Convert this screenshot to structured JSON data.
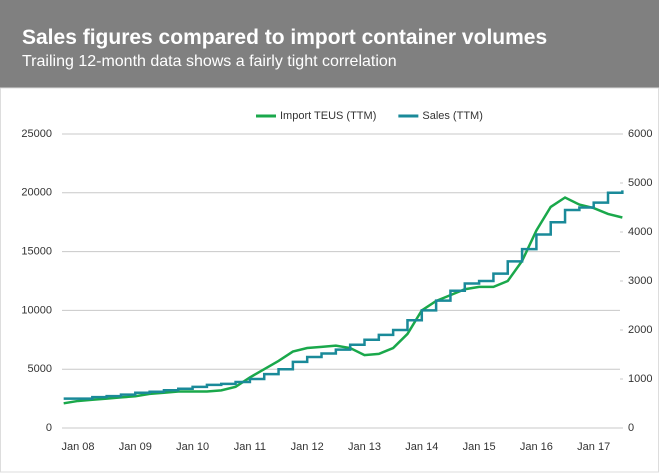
{
  "chart_data": {
    "type": "line",
    "title": "Sales figures compared to import container volumes",
    "subtitle": "Trailing 12-month data shows a fairly tight correlation",
    "categories": [
      null,
      "Jan 08",
      null,
      null,
      null,
      "Jan 09",
      null,
      null,
      null,
      "Jan 10",
      null,
      null,
      null,
      "Jan 11",
      null,
      null,
      null,
      "Jan 12",
      null,
      null,
      null,
      "Jan 13",
      null,
      null,
      null,
      "Jan 14",
      null,
      null,
      null,
      "Jan 15",
      null,
      null,
      null,
      "Jan 16",
      null,
      null,
      null,
      "Jan 17",
      null,
      null
    ],
    "series": [
      {
        "name": "Import TEUS (TTM)",
        "color": "#1aa84b",
        "axis": "y",
        "values": [
          2100,
          2300,
          2400,
          2500,
          2600,
          2700,
          2900,
          3000,
          3100,
          3100,
          3100,
          3200,
          3500,
          4300,
          5000,
          5700,
          6500,
          6800,
          6900,
          7000,
          6800,
          6200,
          6300,
          6800,
          8000,
          10000,
          10800,
          11300,
          11800,
          12000,
          12000,
          12500,
          14200,
          16800,
          18800,
          19600,
          19000,
          18700,
          18200,
          17900
        ]
      },
      {
        "name": "Sales (TTM)",
        "color": "#1a8a99",
        "axis": "y2",
        "step": true,
        "values": [
          600,
          600,
          630,
          650,
          680,
          720,
          740,
          770,
          800,
          840,
          880,
          900,
          940,
          1000,
          1100,
          1200,
          1350,
          1450,
          1520,
          1600,
          1700,
          1800,
          1900,
          2000,
          2200,
          2400,
          2600,
          2800,
          2950,
          3000,
          3150,
          3400,
          3650,
          3950,
          4200,
          4450,
          4500,
          4600,
          4800,
          4850
        ]
      }
    ],
    "ylim": [
      0,
      25000
    ],
    "yticks": [
      0,
      5000,
      10000,
      15000,
      20000,
      25000
    ],
    "y2lim": [
      0,
      6000
    ],
    "y2ticks": [
      0,
      1000,
      2000,
      3000,
      4000,
      5000,
      6000
    ],
    "grid": true,
    "legend": "top"
  }
}
